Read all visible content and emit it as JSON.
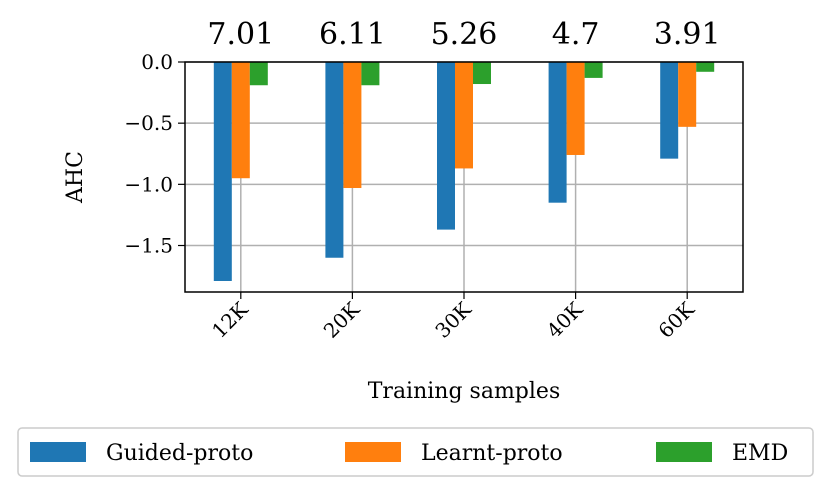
{
  "chart_data": {
    "type": "bar",
    "title": "",
    "xlabel": "Training samples",
    "ylabel": "AHC",
    "categories": [
      "12K",
      "20K",
      "30K",
      "40K",
      "60K"
    ],
    "ylim": [
      -1.88,
      0.0
    ],
    "yticks": [
      0.0,
      -0.5,
      -1.0,
      -1.5
    ],
    "ytick_labels": [
      "0.0",
      "−0.5",
      "−1.0",
      "−1.5"
    ],
    "grid": true,
    "legend_position": "bottom",
    "top_annotations": [
      "7.01",
      "6.11",
      "5.26",
      "4.7",
      "3.91"
    ],
    "series": [
      {
        "name": "Guided-proto",
        "color": "#1f77b4",
        "values": [
          -1.79,
          -1.6,
          -1.37,
          -1.15,
          -0.79
        ]
      },
      {
        "name": "Learnt-proto",
        "color": "#ff7f0e",
        "values": [
          -0.95,
          -1.03,
          -0.87,
          -0.76,
          -0.53
        ]
      },
      {
        "name": "EMD",
        "color": "#2ca02c",
        "values": [
          -0.19,
          -0.19,
          -0.18,
          -0.13,
          -0.08
        ]
      }
    ]
  }
}
